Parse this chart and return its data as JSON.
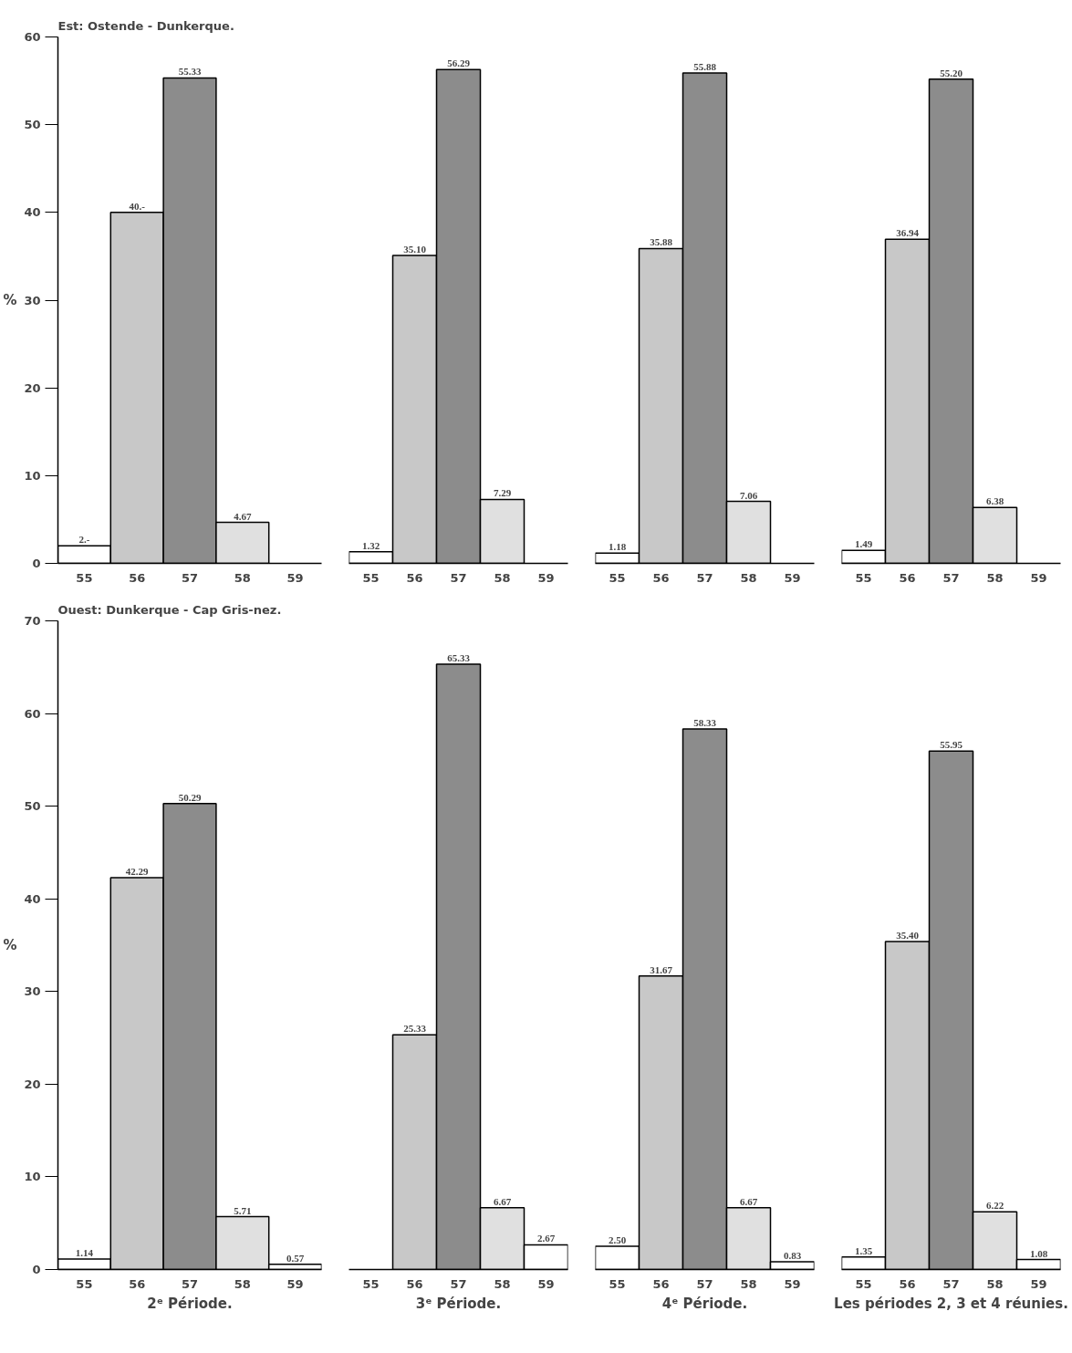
{
  "chart_data": [
    {
      "type": "bar",
      "title": "Est: Ostende - Dunkerque.",
      "ylabel": "%",
      "categories": [
        "55",
        "56",
        "57",
        "58",
        "59"
      ],
      "values": [
        2,
        40,
        55.33,
        4.67,
        null
      ],
      "value_labels": [
        "2.-",
        "40.-",
        "55.33",
        "4.67",
        null
      ],
      "colors": [
        "#ffffff",
        "#c8c8c8",
        "#8c8c8c",
        "#e0e0e0",
        "#ffffff"
      ],
      "ylim": [
        0,
        60
      ],
      "yticks": [
        0,
        10,
        20,
        30,
        40,
        50,
        60
      ],
      "grid": false
    },
    {
      "type": "bar",
      "categories": [
        "55",
        "56",
        "57",
        "58",
        "59"
      ],
      "values": [
        1.32,
        35.1,
        56.29,
        7.29,
        null
      ],
      "value_labels": [
        "1.32",
        "35.10",
        "56.29",
        "7.29",
        null
      ],
      "colors": [
        "#ffffff",
        "#c8c8c8",
        "#8c8c8c",
        "#e0e0e0",
        "#ffffff"
      ],
      "ylim": [
        0,
        60
      ],
      "yticks": [
        0,
        10,
        20,
        30,
        40,
        50,
        60
      ],
      "tick_labels": "x",
      "grid": false
    },
    {
      "type": "bar",
      "categories": [
        "55",
        "56",
        "57",
        "58",
        "59"
      ],
      "values": [
        1.18,
        35.88,
        55.88,
        7.06,
        null
      ],
      "value_labels": [
        "1.18",
        "35.88",
        "55.88",
        "7.06",
        null
      ],
      "colors": [
        "#ffffff",
        "#c8c8c8",
        "#8c8c8c",
        "#e0e0e0",
        "#ffffff"
      ],
      "ylim": [
        0,
        60
      ],
      "yticks": [
        0,
        10,
        20,
        30,
        40,
        50,
        60
      ],
      "tick_labels": "x",
      "grid": false
    },
    {
      "type": "bar",
      "categories": [
        "55",
        "56",
        "57",
        "58",
        "59"
      ],
      "values": [
        1.49,
        36.94,
        55.2,
        6.38,
        null
      ],
      "value_labels": [
        "1.49",
        "36.94",
        "55.20",
        "6.38",
        null
      ],
      "colors": [
        "#ffffff",
        "#c8c8c8",
        "#8c8c8c",
        "#e0e0e0",
        "#ffffff"
      ],
      "ylim": [
        0,
        60
      ],
      "yticks": [
        0,
        10,
        20,
        30,
        40,
        50,
        60
      ],
      "tick_labels": "x",
      "grid": false
    },
    {
      "type": "bar",
      "title": "Ouest: Dunkerque - Cap Gris-nez.",
      "ylabel": "%",
      "xlabel": "2ᵉ Période.",
      "categories": [
        "55",
        "56",
        "57",
        "58",
        "59"
      ],
      "values": [
        1.14,
        42.29,
        50.29,
        5.71,
        0.57
      ],
      "value_labels": [
        "1.14",
        "42.29",
        "50.29",
        "5.71",
        "0.57"
      ],
      "colors": [
        "#ffffff",
        "#c8c8c8",
        "#8c8c8c",
        "#e0e0e0",
        "#ffffff"
      ],
      "ylim": [
        0,
        70
      ],
      "yticks": [
        0,
        10,
        20,
        30,
        40,
        50,
        60,
        70
      ],
      "grid": false
    },
    {
      "type": "bar",
      "xlabel": "3ᵉ Période.",
      "categories": [
        "55",
        "56",
        "57",
        "58",
        "59"
      ],
      "values": [
        null,
        25.33,
        65.33,
        6.67,
        2.67
      ],
      "value_labels": [
        null,
        "25.33",
        "65.33",
        "6.67",
        "2.67"
      ],
      "colors": [
        "#ffffff",
        "#c8c8c8",
        "#8c8c8c",
        "#e0e0e0",
        "#ffffff"
      ],
      "ylim": [
        0,
        70
      ],
      "yticks": [
        0,
        10,
        20,
        30,
        40,
        50,
        60,
        70
      ],
      "tick_labels": "x",
      "grid": false
    },
    {
      "type": "bar",
      "xlabel": "4ᵉ Période.",
      "categories": [
        "55",
        "56",
        "57",
        "58",
        "59"
      ],
      "values": [
        2.5,
        31.67,
        58.33,
        6.67,
        0.83
      ],
      "value_labels": [
        "2.50",
        "31.67",
        "58.33",
        "6.67",
        "0.83"
      ],
      "colors": [
        "#ffffff",
        "#c8c8c8",
        "#8c8c8c",
        "#e0e0e0",
        "#ffffff"
      ],
      "ylim": [
        0,
        70
      ],
      "yticks": [
        0,
        10,
        20,
        30,
        40,
        50,
        60,
        70
      ],
      "tick_labels": "x",
      "grid": false
    },
    {
      "type": "bar",
      "xlabel": "Les périodes 2, 3 et 4 réunies.",
      "categories": [
        "55",
        "56",
        "57",
        "58",
        "59"
      ],
      "values": [
        1.35,
        35.4,
        55.95,
        6.22,
        1.08
      ],
      "value_labels": [
        "1.35",
        "35.40",
        "55.95",
        "6.22",
        "1.08"
      ],
      "colors": [
        "#ffffff",
        "#c8c8c8",
        "#8c8c8c",
        "#e0e0e0",
        "#ffffff"
      ],
      "ylim": [
        0,
        70
      ],
      "yticks": [
        0,
        10,
        20,
        30,
        40,
        50,
        60,
        70
      ],
      "tick_labels": "x",
      "grid": false
    }
  ]
}
